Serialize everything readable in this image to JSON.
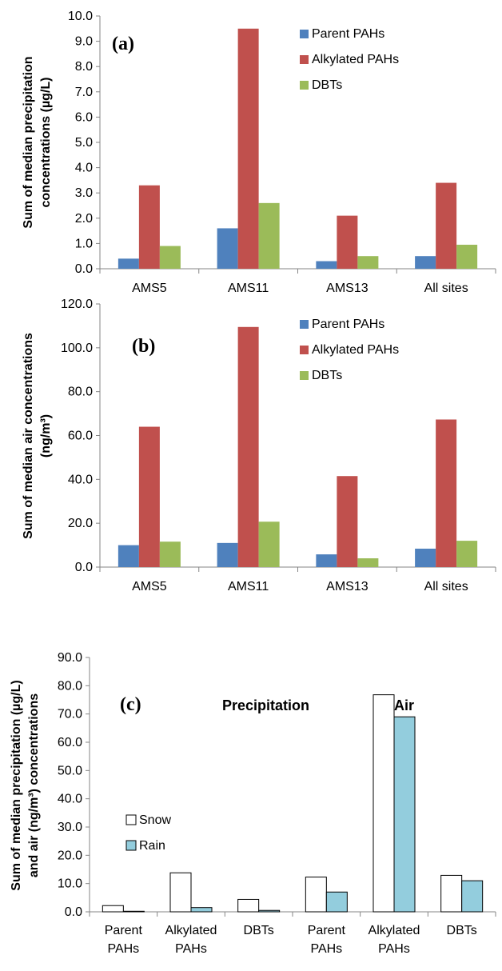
{
  "chart_data": [
    {
      "type": "bar",
      "panel_label": "(a)",
      "ylabel_lines": [
        "Sum of median precipitation",
        "concentrations (µg/L)"
      ],
      "categories": [
        "AMS5",
        "AMS11",
        "AMS13",
        "All sites"
      ],
      "ylim": [
        0,
        10
      ],
      "yticks": [
        0,
        1,
        2,
        3,
        4,
        5,
        6,
        7,
        8,
        9,
        10
      ],
      "ytick_labels": [
        "0.0",
        "1.0",
        "2.0",
        "3.0",
        "4.0",
        "5.0",
        "6.0",
        "7.0",
        "8.0",
        "9.0",
        "10.0"
      ],
      "legend_position": "top-right",
      "series": [
        {
          "name": "Parent PAHs",
          "color": "#4f81bd",
          "values": [
            0.4,
            1.6,
            0.3,
            0.5
          ]
        },
        {
          "name": "Alkylated PAHs",
          "color": "#c0504d",
          "values": [
            3.3,
            9.5,
            2.1,
            3.4
          ]
        },
        {
          "name": "DBTs",
          "color": "#9bbb59",
          "values": [
            0.9,
            2.6,
            0.5,
            0.95
          ]
        }
      ]
    },
    {
      "type": "bar",
      "panel_label": "(b)",
      "ylabel_lines": [
        "Sum of median air concentrations",
        "(ng/m³)"
      ],
      "categories": [
        "AMS5",
        "AMS11",
        "AMS13",
        "All sites"
      ],
      "ylim": [
        0,
        120
      ],
      "yticks": [
        0,
        20,
        40,
        60,
        80,
        100,
        120
      ],
      "ytick_labels": [
        "0.0",
        "20.0",
        "40.0",
        "60.0",
        "80.0",
        "100.0",
        "120.0"
      ],
      "legend_position": "top-right",
      "series": [
        {
          "name": "Parent PAHs",
          "color": "#4f81bd",
          "values": [
            10,
            11,
            5.8,
            8.4
          ]
        },
        {
          "name": "Alkylated PAHs",
          "color": "#c0504d",
          "values": [
            64,
            109.5,
            41.5,
            67.3
          ]
        },
        {
          "name": "DBTs",
          "color": "#9bbb59",
          "values": [
            11.6,
            20.7,
            4,
            12
          ]
        }
      ]
    },
    {
      "type": "bar",
      "panel_label": "(c)",
      "ylabel_lines": [
        "Sum of median precipitation (µg/L)",
        "and air (ng/m³) concentrations"
      ],
      "categories": [
        [
          "Parent",
          "PAHs"
        ],
        [
          "Alkylated",
          "PAHs"
        ],
        [
          "DBTs"
        ],
        [
          "Parent",
          "PAHs"
        ],
        [
          "Alkylated",
          "PAHs"
        ],
        [
          "DBTs"
        ]
      ],
      "group_labels": [
        "Precipitation",
        "Air"
      ],
      "ylim": [
        0,
        90
      ],
      "yticks": [
        0,
        10,
        20,
        30,
        40,
        50,
        60,
        70,
        80,
        90
      ],
      "ytick_labels": [
        "0.0",
        "10.0",
        "20.0",
        "30.0",
        "40.0",
        "50.0",
        "60.0",
        "70.0",
        "80.0",
        "90.0"
      ],
      "legend_position": "middle-left",
      "series": [
        {
          "name": "Snow",
          "color": "#ffffff",
          "values": [
            2.2,
            13.8,
            4.4,
            12.3,
            76.8,
            12.9
          ]
        },
        {
          "name": "Rain",
          "color": "#93cddd",
          "values": [
            0.2,
            1.5,
            0.5,
            7,
            69,
            11
          ]
        }
      ]
    }
  ]
}
